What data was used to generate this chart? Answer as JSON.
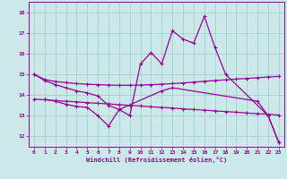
{
  "xlabel": "Windchill (Refroidissement éolien,°C)",
  "bg_color": "#cce8e8",
  "line_color": "#990099",
  "grid_color": "#99cccc",
  "xlim": [
    -0.5,
    23.5
  ],
  "ylim": [
    11.5,
    18.5
  ],
  "yticks": [
    12,
    13,
    14,
    15,
    16,
    17,
    18
  ],
  "xticks": [
    0,
    1,
    2,
    3,
    4,
    5,
    6,
    7,
    8,
    9,
    10,
    11,
    12,
    13,
    14,
    15,
    16,
    17,
    18,
    19,
    20,
    21,
    22,
    23
  ],
  "series1_x": [
    0,
    1,
    2,
    3,
    4,
    5,
    6,
    7,
    8,
    9,
    10,
    11,
    12,
    13,
    14,
    15,
    16,
    17,
    18,
    22,
    23
  ],
  "series1_y": [
    15.0,
    14.7,
    14.5,
    14.35,
    14.2,
    14.1,
    13.95,
    13.5,
    13.3,
    13.0,
    15.5,
    16.05,
    15.5,
    17.1,
    16.7,
    16.5,
    17.8,
    16.3,
    15.0,
    13.0,
    11.7
  ],
  "series2_x": [
    1,
    2,
    3,
    4,
    5,
    6,
    7,
    8,
    12,
    13,
    21,
    22,
    23
  ],
  "series2_y": [
    13.8,
    13.7,
    13.55,
    13.45,
    13.4,
    13.0,
    12.5,
    13.3,
    14.2,
    14.35,
    13.7,
    13.0,
    11.7
  ],
  "series3_x": [
    0,
    1,
    2,
    3,
    4,
    5,
    6,
    7,
    8,
    9,
    10,
    11,
    12,
    13,
    14,
    15,
    16,
    17,
    18,
    19,
    20,
    21,
    22,
    23
  ],
  "series3_y": [
    13.8,
    13.77,
    13.73,
    13.7,
    13.67,
    13.63,
    13.6,
    13.57,
    13.53,
    13.5,
    13.47,
    13.43,
    13.4,
    13.37,
    13.33,
    13.3,
    13.27,
    13.23,
    13.2,
    13.17,
    13.13,
    13.1,
    13.07,
    13.03
  ],
  "series4_x": [
    0,
    1,
    2,
    3,
    4,
    5,
    6,
    7,
    8,
    9,
    10,
    11,
    12,
    13,
    14,
    15,
    16,
    17,
    18,
    19,
    20,
    21,
    22,
    23
  ],
  "series4_y": [
    15.0,
    14.75,
    14.65,
    14.6,
    14.55,
    14.52,
    14.5,
    14.48,
    14.47,
    14.47,
    14.48,
    14.5,
    14.52,
    14.55,
    14.58,
    14.62,
    14.66,
    14.7,
    14.73,
    14.77,
    14.8,
    14.83,
    14.87,
    14.9
  ]
}
